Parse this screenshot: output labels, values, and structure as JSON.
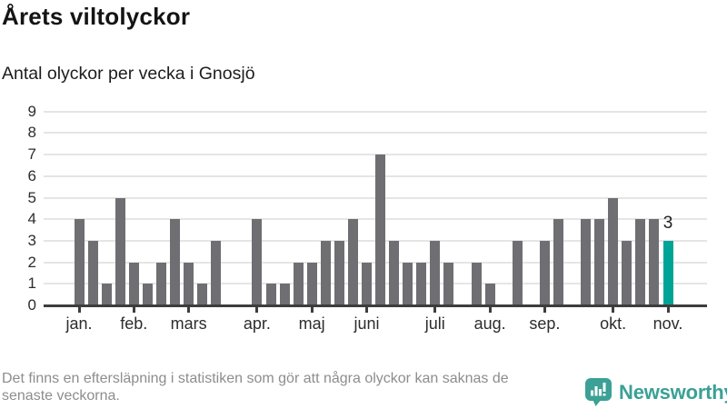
{
  "title": "Årets viltolyckor",
  "subtitle": "Antal olyckor per vecka i Gnosjö",
  "footer": {
    "line1": "Det finns en eftersläpning i statistiken som gör att några olyckor kan saknas de",
    "line2": "senaste veckorna."
  },
  "branding": {
    "name": "Newsworthy",
    "icon": "newsworthy-speech-bubble-bar-chart-icon",
    "color": "#3ba096"
  },
  "colors": {
    "bar": "#6e6e73",
    "highlight": "#00a496",
    "gridline": "#e5e5e5",
    "axis": "#3d3d3d"
  },
  "chart_data": {
    "type": "bar",
    "title": "Årets viltolyckor",
    "subtitle": "Antal olyckor per vecka i Gnosjö",
    "x_unit": "vecka (week of year)",
    "xlabel": "",
    "ylabel": "",
    "ylim": [
      0,
      9
    ],
    "y_ticks": [
      0,
      1,
      2,
      3,
      4,
      5,
      6,
      7,
      8,
      9
    ],
    "grid": true,
    "values": [
      4,
      3,
      1,
      5,
      2,
      1,
      2,
      4,
      2,
      1,
      3,
      0,
      0,
      4,
      1,
      1,
      2,
      2,
      3,
      3,
      4,
      2,
      7,
      3,
      2,
      2,
      3,
      2,
      0,
      2,
      1,
      0,
      3,
      0,
      3,
      4,
      0,
      4,
      4,
      5,
      3,
      4,
      4,
      3
    ],
    "note": "0 = no bar shown for that week",
    "highlight_last": true,
    "last_value_label": "3",
    "ticks": [
      {
        "week": 1,
        "label": "jan."
      },
      {
        "week": 5,
        "label": "feb."
      },
      {
        "week": 9,
        "label": "mars"
      },
      {
        "week": 14,
        "label": "apr."
      },
      {
        "week": 18,
        "label": "maj"
      },
      {
        "week": 22,
        "label": "juni"
      },
      {
        "week": 27,
        "label": "juli"
      },
      {
        "week": 31,
        "label": "aug."
      },
      {
        "week": 35,
        "label": "sep."
      },
      {
        "week": 40,
        "label": "okt."
      },
      {
        "week": 44,
        "label": "nov."
      }
    ]
  }
}
